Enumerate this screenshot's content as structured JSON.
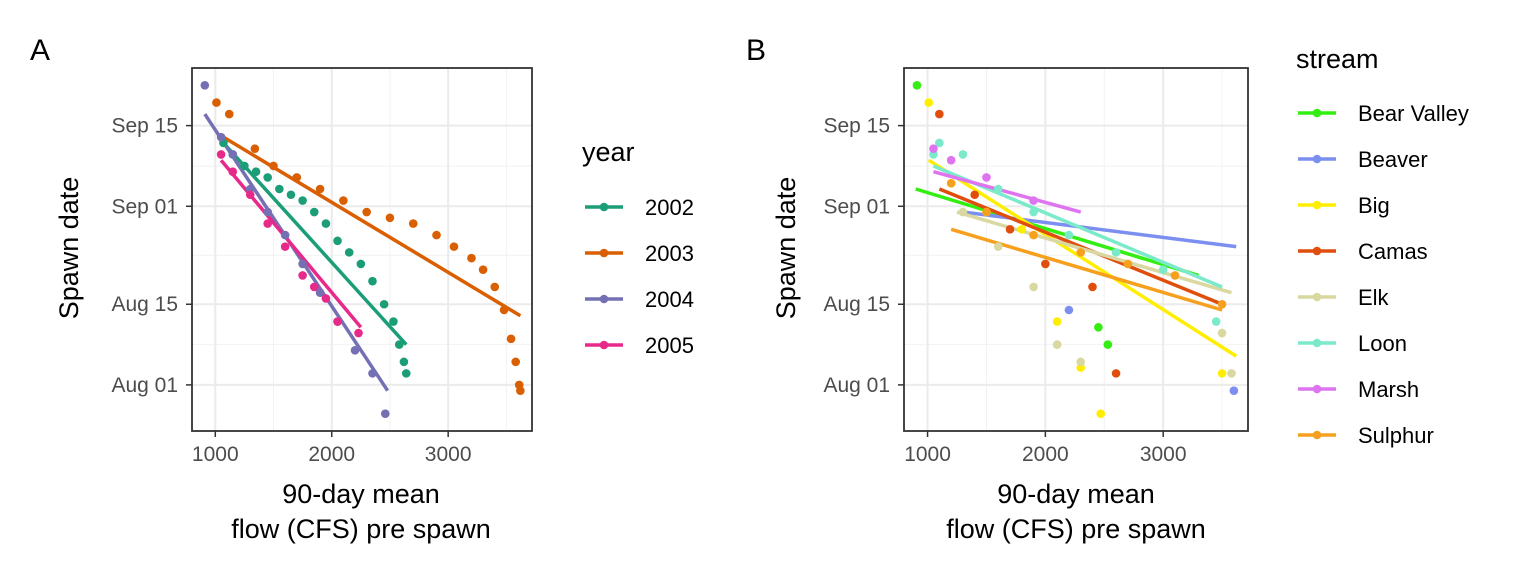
{
  "chart_data": [
    {
      "type": "scatter",
      "panel_label": "A",
      "xlabel": [
        "90-day mean",
        "flow (CFS) pre spawn"
      ],
      "ylabel": "Spawn date",
      "xlim": [
        800,
        3720
      ],
      "ylim": [
        "2000-07-24",
        "2000-09-25"
      ],
      "x_ticks": [
        1000,
        2000,
        3000
      ],
      "y_ticks": [
        {
          "label": "Aug 01",
          "value": "2000-08-01"
        },
        {
          "label": "Aug 15",
          "value": "2000-08-15"
        },
        {
          "label": "Sep 01",
          "value": "2000-09-01"
        },
        {
          "label": "Sep 15",
          "value": "2000-09-15"
        }
      ],
      "grid": true,
      "legend": {
        "title": "year",
        "placement": "right"
      },
      "series": [
        {
          "name": "2002",
          "color": "#1b9e77",
          "points": [
            [
              1070,
              "2000-09-12"
            ],
            [
              1150,
              "2000-09-10"
            ],
            [
              1250,
              "2000-09-08"
            ],
            [
              1350,
              "2000-09-07"
            ],
            [
              1450,
              "2000-09-06"
            ],
            [
              1550,
              "2000-09-04"
            ],
            [
              1650,
              "2000-09-03"
            ],
            [
              1750,
              "2000-09-02"
            ],
            [
              1850,
              "2000-08-31"
            ],
            [
              1950,
              "2000-08-29"
            ],
            [
              2050,
              "2000-08-26"
            ],
            [
              2150,
              "2000-08-24"
            ],
            [
              2250,
              "2000-08-22"
            ],
            [
              2350,
              "2000-08-19"
            ],
            [
              2450,
              "2000-08-15"
            ],
            [
              2530,
              "2000-08-12"
            ],
            [
              2580,
              "2000-08-08"
            ],
            [
              2620,
              "2000-08-05"
            ],
            [
              2640,
              "2000-08-03"
            ]
          ],
          "fit": [
            [
              1070,
              "2000-09-12"
            ],
            [
              2640,
              "2000-08-08"
            ]
          ]
        },
        {
          "name": "2003",
          "color": "#d95f02",
          "points": [
            [
              1010,
              "2000-09-19"
            ],
            [
              1120,
              "2000-09-17"
            ],
            [
              1340,
              "2000-09-11"
            ],
            [
              1500,
              "2000-09-08"
            ],
            [
              1700,
              "2000-09-06"
            ],
            [
              1900,
              "2000-09-04"
            ],
            [
              2100,
              "2000-09-02"
            ],
            [
              2300,
              "2000-08-31"
            ],
            [
              2500,
              "2000-08-30"
            ],
            [
              2700,
              "2000-08-29"
            ],
            [
              2900,
              "2000-08-27"
            ],
            [
              3050,
              "2000-08-25"
            ],
            [
              3200,
              "2000-08-23"
            ],
            [
              3300,
              "2000-08-21"
            ],
            [
              3400,
              "2000-08-18"
            ],
            [
              3480,
              "2000-08-14"
            ],
            [
              3540,
              "2000-08-09"
            ],
            [
              3580,
              "2000-08-05"
            ],
            [
              3610,
              "2000-08-01"
            ],
            [
              3620,
              "2000-07-31"
            ]
          ],
          "fit": [
            [
              1070,
              "2000-09-13"
            ],
            [
              3620,
              "2000-08-13"
            ]
          ]
        },
        {
          "name": "2004",
          "color": "#7570b3",
          "points": [
            [
              910,
              "2000-09-22"
            ],
            [
              1050,
              "2000-09-13"
            ],
            [
              1150,
              "2000-09-10"
            ],
            [
              1300,
              "2000-09-04"
            ],
            [
              1450,
              "2000-08-31"
            ],
            [
              1600,
              "2000-08-27"
            ],
            [
              1750,
              "2000-08-22"
            ],
            [
              1900,
              "2000-08-17"
            ],
            [
              2050,
              "2000-08-12"
            ],
            [
              2200,
              "2000-08-07"
            ],
            [
              2350,
              "2000-08-03"
            ],
            [
              2460,
              "2000-07-27"
            ]
          ],
          "fit": [
            [
              910,
              "2000-09-17"
            ],
            [
              2480,
              "2000-07-31"
            ]
          ]
        },
        {
          "name": "2005",
          "color": "#e7298a",
          "points": [
            [
              1050,
              "2000-09-10"
            ],
            [
              1150,
              "2000-09-07"
            ],
            [
              1300,
              "2000-09-03"
            ],
            [
              1450,
              "2000-08-29"
            ],
            [
              1600,
              "2000-08-25"
            ],
            [
              1750,
              "2000-08-20"
            ],
            [
              1850,
              "2000-08-18"
            ],
            [
              1950,
              "2000-08-16"
            ],
            [
              2050,
              "2000-08-12"
            ],
            [
              2230,
              "2000-08-10"
            ]
          ],
          "fit": [
            [
              1050,
              "2000-09-09"
            ],
            [
              2250,
              "2000-08-11"
            ]
          ]
        }
      ]
    },
    {
      "type": "scatter",
      "panel_label": "B",
      "xlabel": [
        "90-day mean",
        "flow (CFS) pre spawn"
      ],
      "ylabel": "Spawn date",
      "xlim": [
        800,
        3720
      ],
      "ylim": [
        "2000-07-24",
        "2000-09-25"
      ],
      "x_ticks": [
        1000,
        2000,
        3000
      ],
      "y_ticks": [
        {
          "label": "Aug 01",
          "value": "2000-08-01"
        },
        {
          "label": "Aug 15",
          "value": "2000-08-15"
        },
        {
          "label": "Sep 01",
          "value": "2000-09-01"
        },
        {
          "label": "Sep 15",
          "value": "2000-09-15"
        }
      ],
      "grid": true,
      "legend": {
        "title": "stream",
        "placement": "right"
      },
      "series": [
        {
          "name": "Bear Valley",
          "color": "#33ee11",
          "points": [
            [
              910,
              "2000-09-22"
            ],
            [
              2450,
              "2000-08-11"
            ],
            [
              2530,
              "2000-08-08"
            ]
          ],
          "fit": [
            [
              900,
              "2000-09-04"
            ],
            [
              3300,
              "2000-08-20"
            ]
          ]
        },
        {
          "name": "Beaver",
          "color": "#7b8ff0",
          "points": [
            [
              2200,
              "2000-08-14"
            ],
            [
              3600,
              "2000-07-31"
            ]
          ],
          "fit": [
            [
              1300,
              "2000-08-31"
            ],
            [
              3620,
              "2000-08-25"
            ]
          ]
        },
        {
          "name": "Big",
          "color": "#ffee00",
          "points": [
            [
              1010,
              "2000-09-19"
            ],
            [
              1200,
              "2000-09-05"
            ],
            [
              1500,
              "2000-08-31"
            ],
            [
              1800,
              "2000-08-28"
            ],
            [
              2100,
              "2000-08-12"
            ],
            [
              2300,
              "2000-08-04"
            ],
            [
              2470,
              "2000-07-27"
            ],
            [
              3500,
              "2000-08-03"
            ]
          ],
          "fit": [
            [
              1010,
              "2000-09-09"
            ],
            [
              3620,
              "2000-08-06"
            ]
          ]
        },
        {
          "name": "Camas",
          "color": "#e04e0e",
          "points": [
            [
              1100,
              "2000-09-17"
            ],
            [
              1400,
              "2000-09-03"
            ],
            [
              1700,
              "2000-08-28"
            ],
            [
              2000,
              "2000-08-22"
            ],
            [
              2400,
              "2000-08-18"
            ],
            [
              2600,
              "2000-08-03"
            ]
          ],
          "fit": [
            [
              1100,
              "2000-09-04"
            ],
            [
              3500,
              "2000-08-15"
            ]
          ]
        },
        {
          "name": "Elk",
          "color": "#d8d8a0",
          "points": [
            [
              1300,
              "2000-08-31"
            ],
            [
              1600,
              "2000-08-25"
            ],
            [
              1900,
              "2000-08-18"
            ],
            [
              2100,
              "2000-08-08"
            ],
            [
              2300,
              "2000-08-05"
            ],
            [
              3500,
              "2000-08-10"
            ],
            [
              3580,
              "2000-08-03"
            ]
          ],
          "fit": [
            [
              1250,
              "2000-08-31"
            ],
            [
              3580,
              "2000-08-17"
            ]
          ]
        },
        {
          "name": "Loon",
          "color": "#7beacb",
          "points": [
            [
              1050,
              "2000-09-10"
            ],
            [
              1100,
              "2000-09-12"
            ],
            [
              1300,
              "2000-09-10"
            ],
            [
              1600,
              "2000-09-04"
            ],
            [
              1900,
              "2000-08-31"
            ],
            [
              2200,
              "2000-08-27"
            ],
            [
              2600,
              "2000-08-24"
            ],
            [
              3000,
              "2000-08-21"
            ],
            [
              3450,
              "2000-08-12"
            ]
          ],
          "fit": [
            [
              1050,
              "2000-09-08"
            ],
            [
              3500,
              "2000-08-18"
            ]
          ]
        },
        {
          "name": "Marsh",
          "color": "#de74ef",
          "points": [
            [
              1050,
              "2000-09-11"
            ],
            [
              1200,
              "2000-09-09"
            ],
            [
              1500,
              "2000-09-06"
            ],
            [
              1900,
              "2000-09-02"
            ]
          ],
          "fit": [
            [
              1050,
              "2000-09-07"
            ],
            [
              2300,
              "2000-08-31"
            ]
          ]
        },
        {
          "name": "Sulphur",
          "color": "#f7a01e",
          "points": [
            [
              1200,
              "2000-09-05"
            ],
            [
              1500,
              "2000-08-31"
            ],
            [
              1900,
              "2000-08-27"
            ],
            [
              2300,
              "2000-08-24"
            ],
            [
              2700,
              "2000-08-22"
            ],
            [
              3100,
              "2000-08-20"
            ],
            [
              3500,
              "2000-08-15"
            ]
          ],
          "fit": [
            [
              1200,
              "2000-08-28"
            ],
            [
              3500,
              "2000-08-14"
            ]
          ]
        }
      ]
    }
  ]
}
